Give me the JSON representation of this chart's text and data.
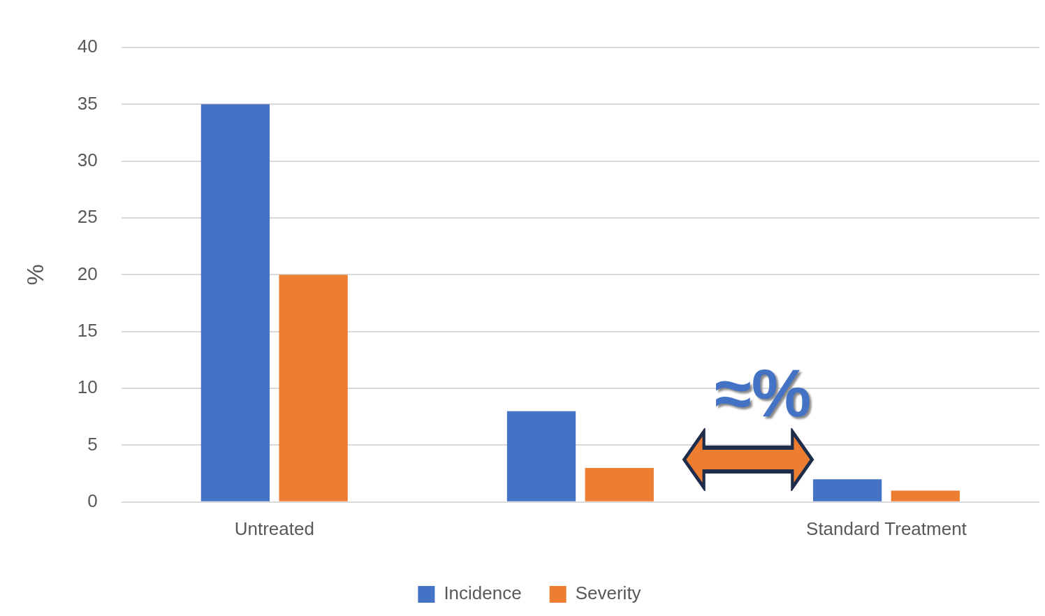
{
  "chart_data": {
    "type": "bar",
    "ylabel": "%",
    "categories": [
      "Untreated",
      null,
      "Standard Treatment"
    ],
    "series": [
      {
        "name": "Incidence",
        "color": "#4472c4",
        "values": [
          35,
          8,
          2
        ]
      },
      {
        "name": "Severity",
        "color": "#ed7d31",
        "values": [
          20,
          3,
          1
        ]
      }
    ],
    "ylim": [
      0,
      40
    ],
    "yticks": [
      0,
      5,
      10,
      15,
      20,
      25,
      30,
      35,
      40
    ],
    "grid": "y",
    "legend": "bottom",
    "annotations": [
      "≈%"
    ]
  }
}
